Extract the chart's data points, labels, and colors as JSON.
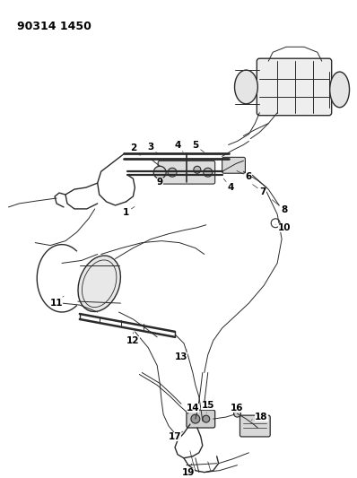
{
  "title": "90314 1450",
  "bg": "#ffffff",
  "lc": "#2a2a2a",
  "tc": "#000000",
  "fig_w": 3.98,
  "fig_h": 5.33,
  "dpi": 100
}
